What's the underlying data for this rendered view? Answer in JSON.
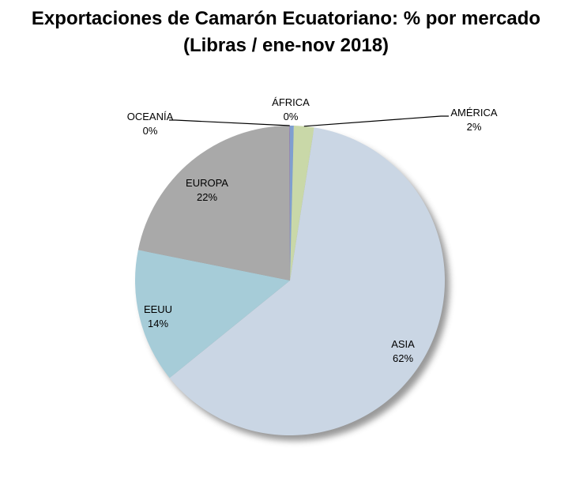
{
  "chart_data": {
    "type": "pie",
    "title_line1": "Exportaciones de Camarón Ecuatoriano: % por mercado",
    "title_line2": "(Libras / ene-nov  2018)",
    "slices": [
      {
        "name": "ÁFRICA",
        "label": "0%",
        "value": 0.4,
        "color": "#7f9fd0"
      },
      {
        "name": "AMÉRICA",
        "label": "2%",
        "value": 2.1,
        "color": "#c9d8a8"
      },
      {
        "name": "ASIA",
        "label": "62%",
        "value": 61.7,
        "color": "#cad6e4"
      },
      {
        "name": "EEUU",
        "label": "14%",
        "value": 14.0,
        "color": "#a6ccd8"
      },
      {
        "name": "EUROPA",
        "label": "22%",
        "value": 21.8,
        "color": "#a9a9a9"
      },
      {
        "name": "OCEANÍA",
        "label": "0%",
        "value": 0.05,
        "color": "#8a6fb0"
      }
    ],
    "start_angle": "top",
    "direction": "clockwise",
    "legend": "none"
  }
}
